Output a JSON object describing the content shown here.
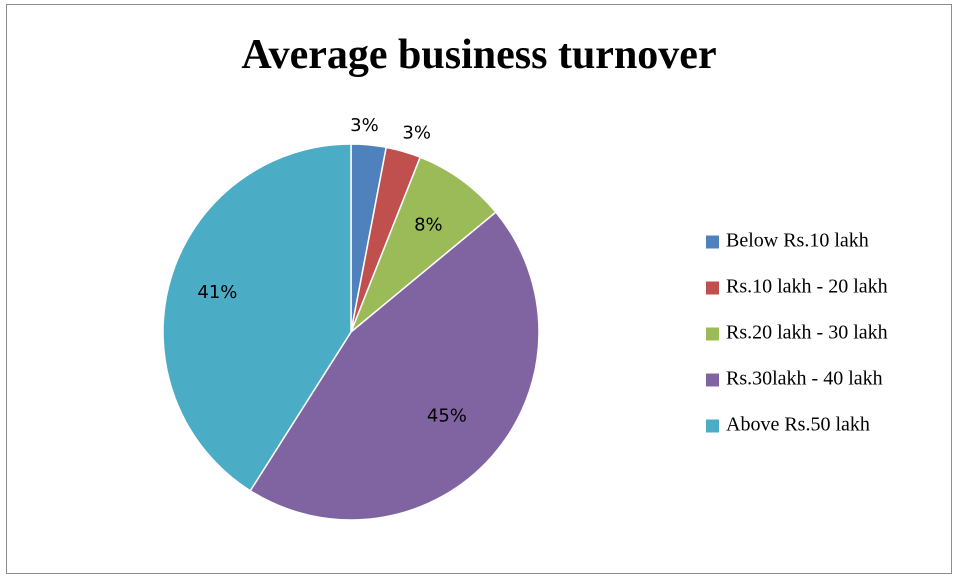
{
  "chart_data": {
    "type": "pie",
    "title": "Average business turnover",
    "categories": [
      "Below Rs.10 lakh",
      "Rs.10 lakh - 20 lakh",
      "Rs.20 lakh - 30 lakh",
      "Rs.30lakh - 40 lakh",
      "Above Rs.50 lakh"
    ],
    "values": [
      3,
      3,
      8,
      45,
      41
    ],
    "labels": [
      "3%",
      "3%",
      "8%",
      "45%",
      "41%"
    ],
    "colors": [
      "#4f81bd",
      "#c0504d",
      "#9bbb59",
      "#8064a2",
      "#4bacc6"
    ],
    "legend_position": "right"
  }
}
